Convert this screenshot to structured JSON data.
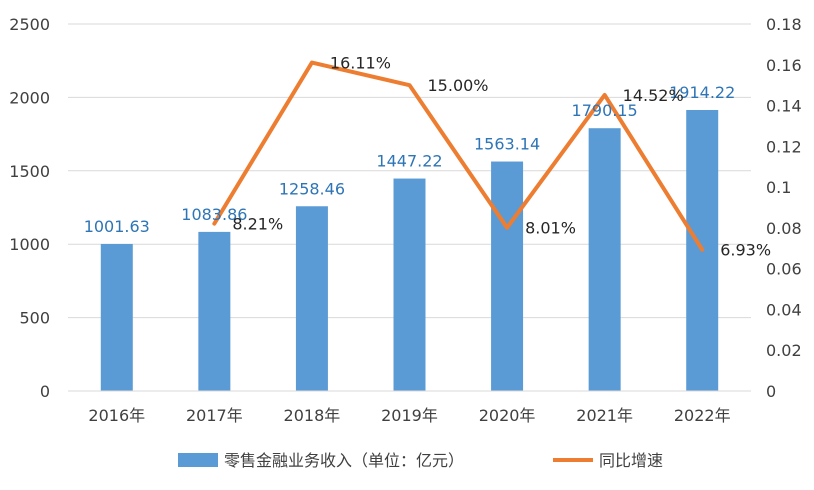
{
  "chart_data": {
    "type": "bar",
    "categories": [
      "2016年",
      "2017年",
      "2018年",
      "2019年",
      "2020年",
      "2021年",
      "2022年"
    ],
    "series": [
      {
        "name": "零售金融业务收入（单位：亿元）",
        "type": "bar",
        "axis": "left",
        "values": [
          1001.63,
          1083.86,
          1258.46,
          1447.22,
          1563.14,
          1790.15,
          1914.22
        ],
        "labels": [
          "1001.63",
          "1083.86",
          "1258.46",
          "1447.22",
          "1563.14",
          "1790.15",
          "1914.22"
        ],
        "color": "#5b9bd5"
      },
      {
        "name": "同比增速",
        "type": "line",
        "axis": "right",
        "values": [
          null,
          0.0821,
          0.1611,
          0.15,
          0.0801,
          0.1452,
          0.0693
        ],
        "labels": [
          "",
          "8.21%",
          "16.11%",
          "15.00%",
          "8.01%",
          "14.52%",
          "6.93%"
        ],
        "color": "#ed7d31"
      }
    ],
    "y_left": {
      "ylim": [
        0,
        2500
      ],
      "ticks": [
        0,
        500,
        1000,
        1500,
        2000,
        2500
      ]
    },
    "y_right": {
      "ylim": [
        0,
        0.18
      ],
      "ticks": [
        "0",
        "0.02",
        "0.04",
        "0.06",
        "0.08",
        "0.1",
        "0.12",
        "0.14",
        "0.16",
        "0.18"
      ]
    },
    "grid": true,
    "legend": "bottom"
  }
}
